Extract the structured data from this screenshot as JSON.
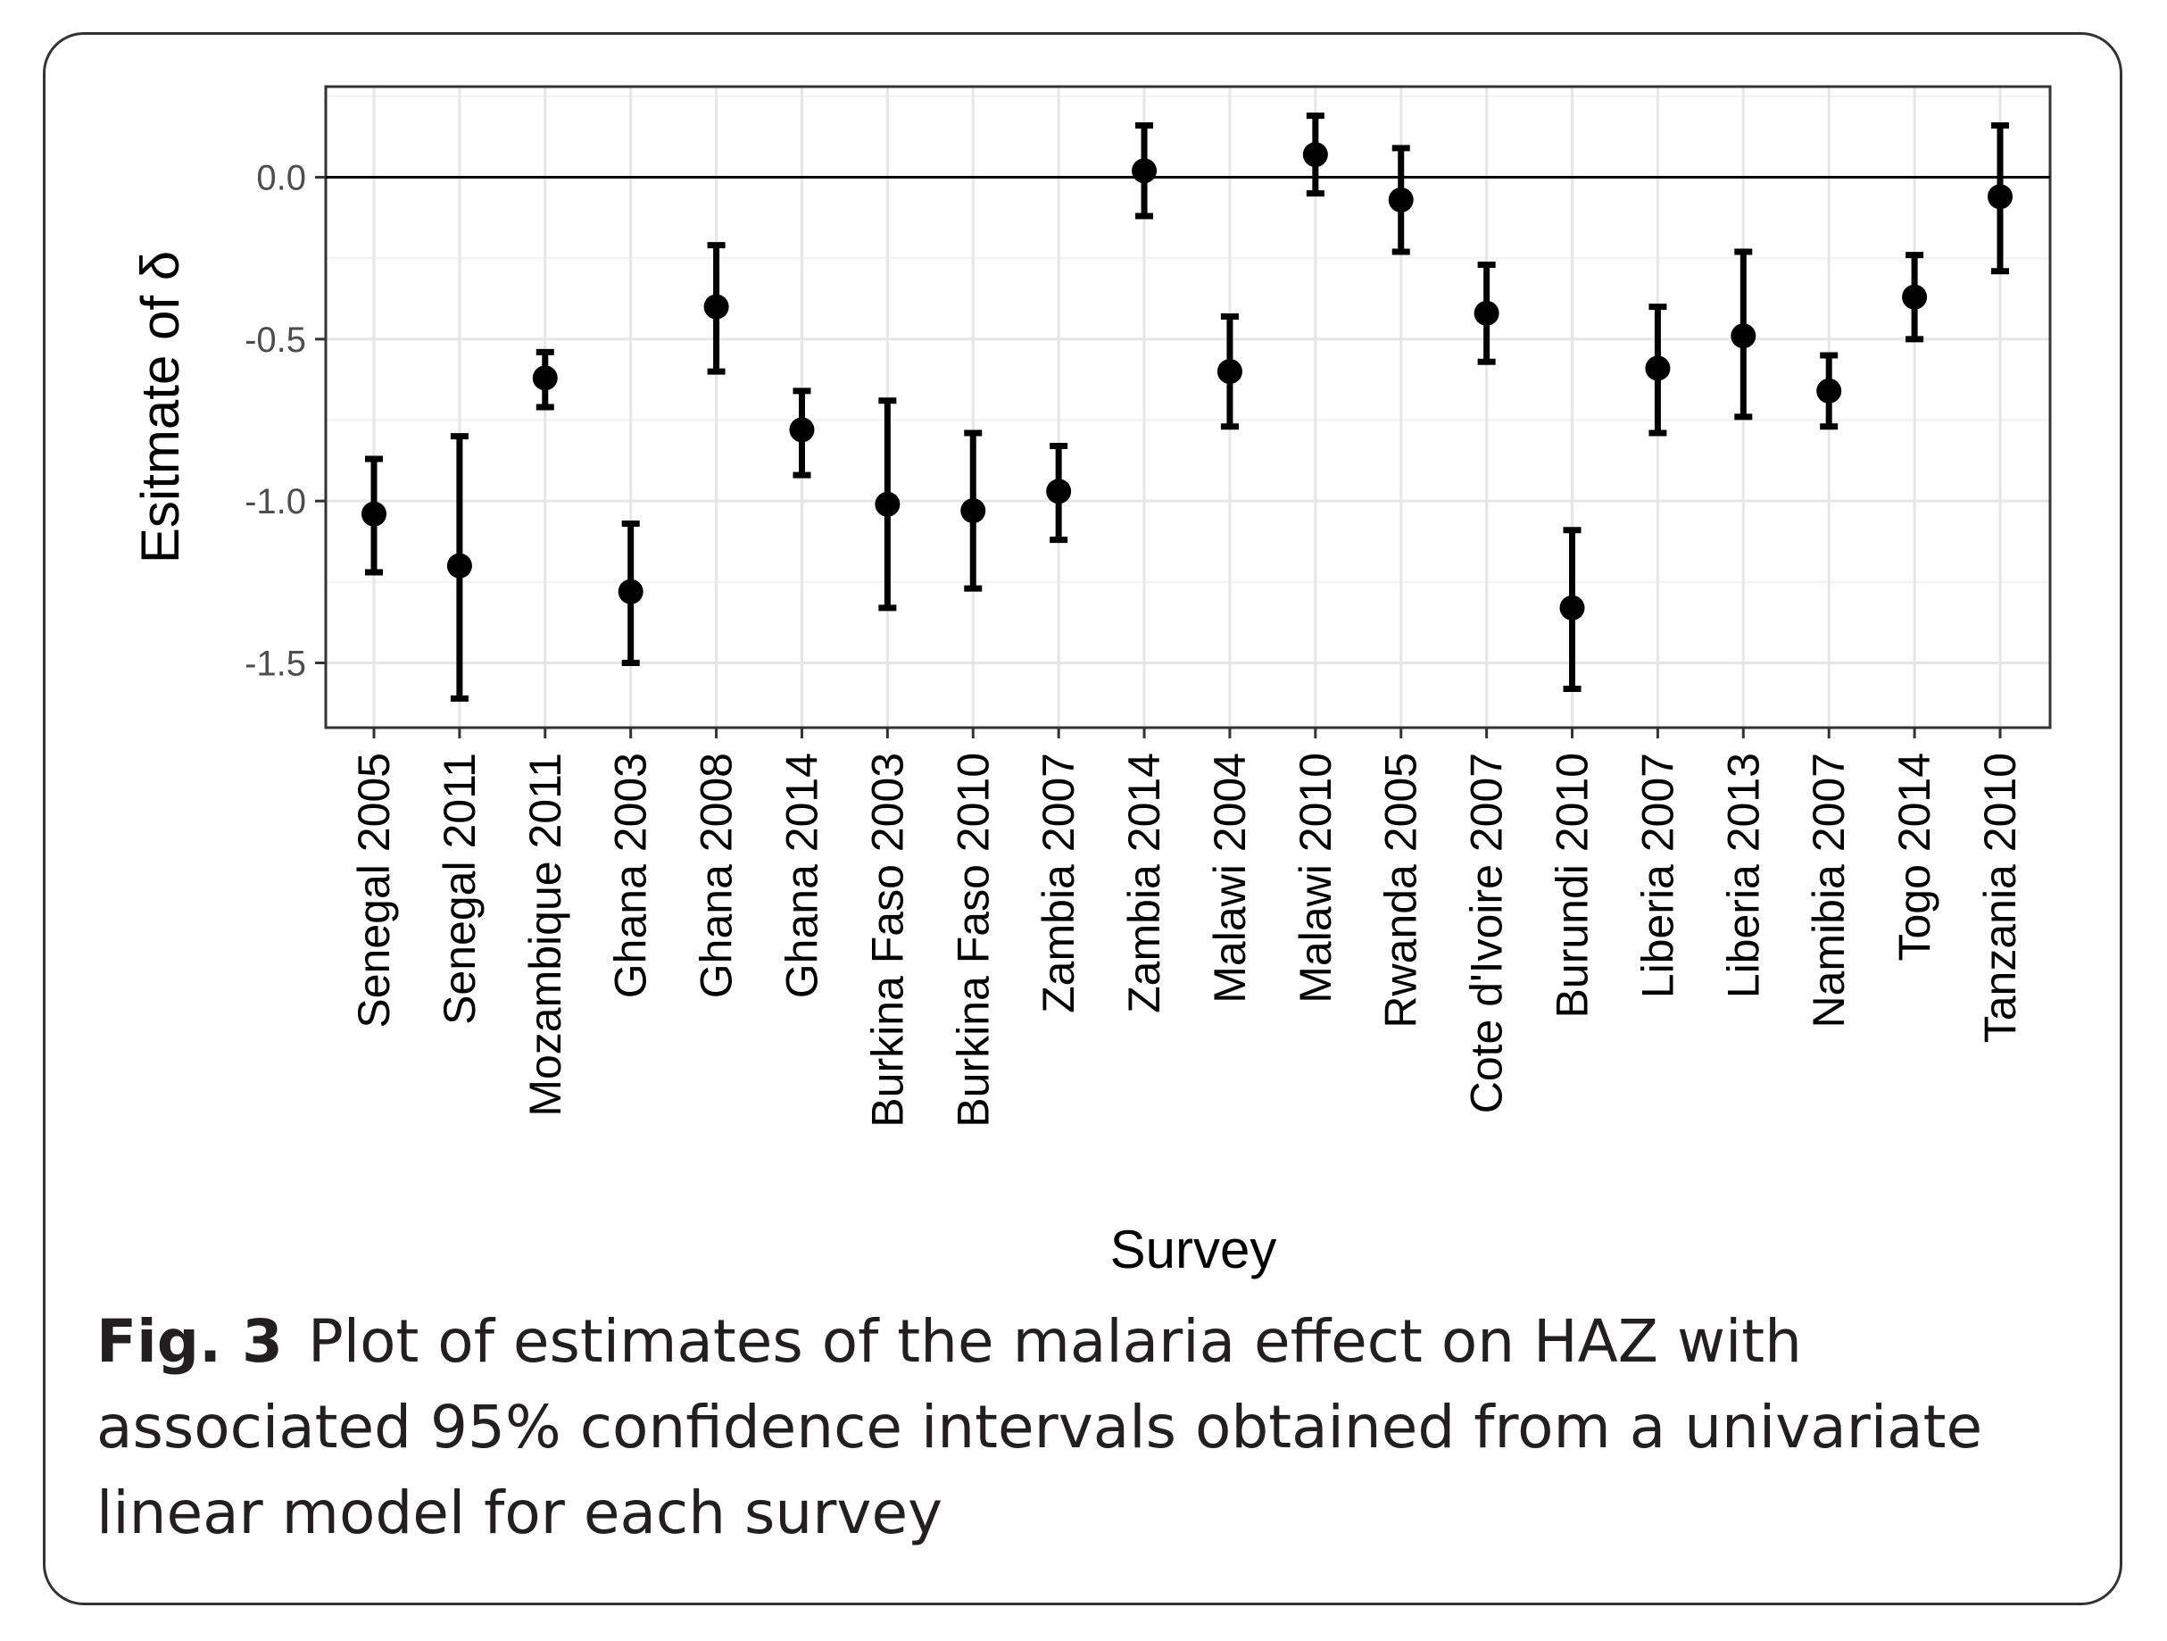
{
  "chart_data": {
    "type": "scatter",
    "subtype": "point-with-error-bars",
    "xlabel": "Survey",
    "ylabel": "Esitmate of δ",
    "ylim": [
      -1.7,
      0.28
    ],
    "yticks": [
      "0.0",
      "-0.5",
      "-1.0",
      "-1.5"
    ],
    "ytick_values": [
      0.0,
      -0.5,
      -1.0,
      -1.5
    ],
    "reference_line": 0.0,
    "grid": true,
    "categories": [
      "Senegal 2005",
      "Senegal 2011",
      "Mozambique 2011",
      "Ghana 2003",
      "Ghana 2008",
      "Ghana 2014",
      "Burkina Faso 2003",
      "Burkina Faso 2010",
      "Zambia 2007",
      "Zambia 2014",
      "Malawi 2004",
      "Malawi 2010",
      "Rwanda 2005",
      "Cote d'Ivoire 2007",
      "Burundi 2010",
      "Liberia 2007",
      "Liberia 2013",
      "Namibia 2007",
      "Togo 2014",
      "Tanzania 2010"
    ],
    "series": [
      {
        "estimate": [
          -1.04,
          -1.2,
          -0.62,
          -1.28,
          -0.4,
          -0.78,
          -1.01,
          -1.03,
          -0.97,
          0.02,
          -0.6,
          0.07,
          -0.07,
          -0.42,
          -1.33,
          -0.59,
          -0.49,
          -0.66,
          -0.37,
          -0.06
        ],
        "lower": [
          -1.22,
          -1.61,
          -0.71,
          -1.5,
          -0.6,
          -0.92,
          -1.33,
          -1.27,
          -1.12,
          -0.12,
          -0.77,
          -0.05,
          -0.23,
          -0.57,
          -1.58,
          -0.79,
          -0.74,
          -0.77,
          -0.5,
          -0.29
        ],
        "upper": [
          -0.87,
          -0.8,
          -0.54,
          -1.07,
          -0.21,
          -0.66,
          -0.69,
          -0.79,
          -0.83,
          0.16,
          -0.43,
          0.19,
          0.09,
          -0.27,
          -1.09,
          -0.4,
          -0.23,
          -0.55,
          -0.24,
          0.16
        ]
      }
    ]
  },
  "caption": {
    "label": "Fig. 3",
    "text": "Plot of estimates of the malaria effect on HAZ with associated 95% confidence intervals obtained from a univariate linear model for each survey"
  }
}
